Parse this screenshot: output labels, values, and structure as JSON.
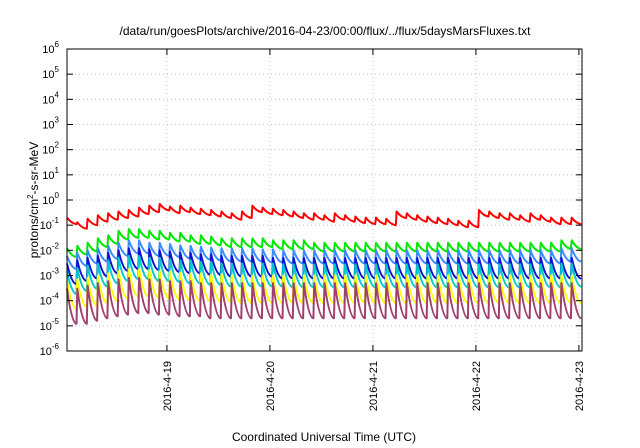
{
  "chart_data": {
    "type": "line",
    "title": "/data/run/goesPlots/archive/2016-04-23/00:00/flux/../flux/5daysMarsFluxes.txt",
    "xlabel": "Coordinated Universal Time (UTC)",
    "ylabel": {
      "pre": "protons/cm",
      "sup": "2",
      "post": "-s-sr-MeV"
    },
    "yscale": "log",
    "ylim_exp": [
      -6,
      6
    ],
    "y_tick_labels": [
      {
        "base": "10",
        "exp": "-6"
      },
      {
        "base": "10",
        "exp": "-5"
      },
      {
        "base": "10",
        "exp": "-4"
      },
      {
        "base": "10",
        "exp": "-3"
      },
      {
        "base": "10",
        "exp": "-2"
      },
      {
        "base": "10",
        "exp": "-1"
      },
      {
        "base": "10",
        "exp": "0"
      },
      {
        "base": "10",
        "exp": "1"
      },
      {
        "base": "10",
        "exp": "2"
      },
      {
        "base": "10",
        "exp": "3"
      },
      {
        "base": "10",
        "exp": "4"
      },
      {
        "base": "10",
        "exp": "5"
      },
      {
        "base": "10",
        "exp": "6"
      }
    ],
    "xlim_days": [
      -0.97,
      4.03
    ],
    "x_ticks": [
      {
        "label": "2016-4-19",
        "day": 0
      },
      {
        "label": "2016-4-20",
        "day": 1
      },
      {
        "label": "2016-4-21",
        "day": 2
      },
      {
        "label": "2016-4-22",
        "day": 3
      },
      {
        "label": "2016-4-23",
        "day": 4
      }
    ],
    "grid": true,
    "series": [
      {
        "color": "#ff0000",
        "peaks": [
          0.2,
          0.13,
          0.18,
          0.25,
          0.3,
          0.35,
          0.4,
          0.5,
          0.6,
          0.7,
          0.55,
          0.6,
          0.5,
          0.45,
          0.4,
          0.35,
          0.3,
          0.35,
          0.6,
          0.5,
          0.45,
          0.4,
          0.35,
          0.3,
          0.3,
          0.25,
          0.3,
          0.25,
          0.22,
          0.2,
          0.2,
          0.18,
          0.35,
          0.3,
          0.25,
          0.22,
          0.2,
          0.18,
          0.15,
          0.15,
          0.4,
          0.35,
          0.3,
          0.3,
          0.25,
          0.3,
          0.25,
          0.2,
          0.2,
          0.2
        ],
        "drop": 0.55
      },
      {
        "color": "#00e800",
        "peaks": [
          0.012,
          0.015,
          0.02,
          0.03,
          0.04,
          0.06,
          0.07,
          0.07,
          0.06,
          0.06,
          0.05,
          0.05,
          0.04,
          0.04,
          0.035,
          0.03,
          0.03,
          0.03,
          0.03,
          0.03,
          0.025,
          0.025,
          0.025,
          0.025,
          0.02,
          0.02,
          0.02,
          0.02,
          0.02,
          0.02,
          0.02,
          0.02,
          0.02,
          0.02,
          0.02,
          0.02,
          0.02,
          0.02,
          0.02,
          0.02,
          0.02,
          0.02,
          0.02,
          0.02,
          0.02,
          0.02,
          0.02,
          0.02,
          0.025,
          0.025
        ],
        "drop": 0.45
      },
      {
        "color": "#3a8cff",
        "peaks": [
          0.006,
          0.008,
          0.01,
          0.012,
          0.015,
          0.02,
          0.025,
          0.025,
          0.02,
          0.02,
          0.018,
          0.016,
          0.015,
          0.014,
          0.013,
          0.012,
          0.012,
          0.012,
          0.012,
          0.011,
          0.011,
          0.01,
          0.01,
          0.01,
          0.01,
          0.01,
          0.01,
          0.01,
          0.01,
          0.01,
          0.01,
          0.01,
          0.01,
          0.01,
          0.01,
          0.01,
          0.01,
          0.01,
          0.01,
          0.01,
          0.01,
          0.01,
          0.01,
          0.01,
          0.01,
          0.01,
          0.01,
          0.01,
          0.012,
          0.012
        ],
        "drop": 0.3
      },
      {
        "color": "#1010d0",
        "peaks": [
          0.003,
          0.004,
          0.005,
          0.006,
          0.008,
          0.01,
          0.012,
          0.012,
          0.011,
          0.01,
          0.009,
          0.008,
          0.008,
          0.007,
          0.007,
          0.006,
          0.006,
          0.006,
          0.006,
          0.006,
          0.005,
          0.005,
          0.005,
          0.005,
          0.005,
          0.005,
          0.005,
          0.005,
          0.005,
          0.005,
          0.005,
          0.005,
          0.005,
          0.005,
          0.005,
          0.005,
          0.005,
          0.005,
          0.005,
          0.005,
          0.005,
          0.005,
          0.005,
          0.005,
          0.005,
          0.005,
          0.005,
          0.005,
          0.005,
          0.005
        ],
        "drop": 0.15
      },
      {
        "color": "#00c8c8",
        "peaks": [
          0.0015,
          0.002,
          0.0025,
          0.003,
          0.004,
          0.005,
          0.006,
          0.006,
          0.005,
          0.005,
          0.0045,
          0.004,
          0.004,
          0.0035,
          0.0035,
          0.003,
          0.003,
          0.003,
          0.003,
          0.003,
          0.003,
          0.0028,
          0.0028,
          0.0028,
          0.0028,
          0.0028,
          0.0028,
          0.0028,
          0.0028,
          0.0028,
          0.0028,
          0.0028,
          0.0028,
          0.0028,
          0.0028,
          0.0028,
          0.0028,
          0.0028,
          0.0028,
          0.0028,
          0.0028,
          0.0028,
          0.0028,
          0.0028,
          0.0028,
          0.0028,
          0.0028,
          0.0028,
          0.003,
          0.003
        ],
        "drop": 0.12
      },
      {
        "color": "#ffff00",
        "peaks": [
          0.0006,
          0.0007,
          0.0008,
          0.001,
          0.0012,
          0.0015,
          0.0018,
          0.0018,
          0.0016,
          0.0015,
          0.0014,
          0.0013,
          0.0012,
          0.0012,
          0.0011,
          0.0011,
          0.001,
          0.001,
          0.001,
          0.001,
          0.001,
          0.001,
          0.001,
          0.001,
          0.001,
          0.001,
          0.001,
          0.001,
          0.001,
          0.001,
          0.001,
          0.001,
          0.001,
          0.001,
          0.001,
          0.001,
          0.001,
          0.001,
          0.001,
          0.001,
          0.001,
          0.001,
          0.001,
          0.001,
          0.001,
          0.001,
          0.001,
          0.001,
          0.001,
          0.001
        ],
        "drop": 0.08
      },
      {
        "color": "#a04070",
        "peaks": [
          0.0003,
          0.0003,
          0.0004,
          0.0005,
          0.0006,
          0.0007,
          0.0008,
          0.0008,
          0.0007,
          0.0007,
          0.0006,
          0.0006,
          0.0006,
          0.0005,
          0.0005,
          0.0005,
          0.0005,
          0.0005,
          0.0005,
          0.0005,
          0.0005,
          0.0005,
          0.0005,
          0.0005,
          0.0005,
          0.0005,
          0.0005,
          0.0005,
          0.0005,
          0.0005,
          0.0005,
          0.0005,
          0.0005,
          0.0005,
          0.0005,
          0.0005,
          0.0005,
          0.0005,
          0.0005,
          0.0005,
          0.0005,
          0.0005,
          0.0005,
          0.0005,
          0.0005,
          0.0005,
          0.0005,
          0.0005,
          0.0005,
          0.0005
        ],
        "drop": 0.04
      }
    ]
  }
}
